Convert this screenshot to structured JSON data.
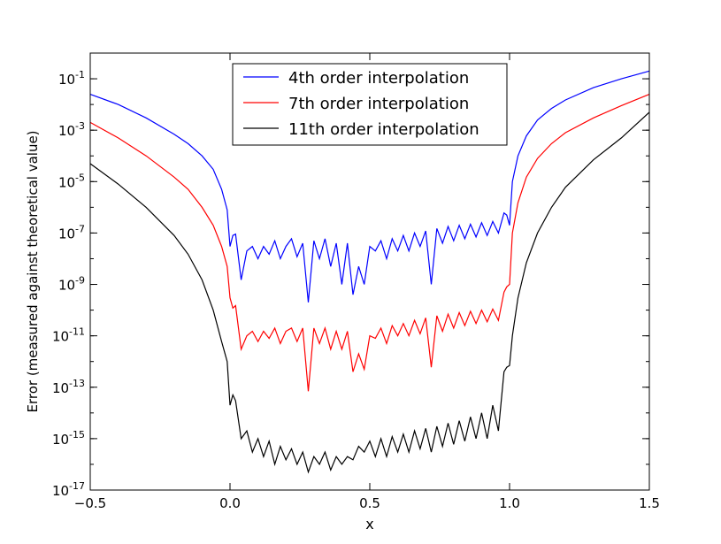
{
  "chart_data": {
    "type": "line",
    "xlabel": "x",
    "ylabel": "Error (measured against theoretical value)",
    "xlim": [
      -0.5,
      1.5
    ],
    "ylim": [
      1e-17,
      1
    ],
    "yscale": "log",
    "grid": false,
    "legend_position": "top-center",
    "x_ticks": [
      -0.5,
      0.0,
      0.5,
      1.0,
      1.5
    ],
    "x_tick_labels": [
      "−0.5",
      "0.0",
      "0.5",
      "1.0",
      "1.5"
    ],
    "y_ticks": [
      -17,
      -15,
      -13,
      -11,
      -9,
      -7,
      -5,
      -3,
      -1
    ],
    "series": [
      {
        "name": "4th order interpolation",
        "color": "#0000ff",
        "x": [
          -0.5,
          -0.4,
          -0.3,
          -0.2,
          -0.15,
          -0.1,
          -0.06,
          -0.03,
          -0.01,
          0.0,
          0.01,
          0.02,
          0.04,
          0.06,
          0.08,
          0.1,
          0.12,
          0.14,
          0.16,
          0.18,
          0.2,
          0.22,
          0.24,
          0.26,
          0.28,
          0.3,
          0.32,
          0.34,
          0.36,
          0.38,
          0.4,
          0.42,
          0.44,
          0.46,
          0.48,
          0.5,
          0.52,
          0.54,
          0.56,
          0.58,
          0.6,
          0.62,
          0.64,
          0.66,
          0.68,
          0.7,
          0.72,
          0.74,
          0.76,
          0.78,
          0.8,
          0.82,
          0.84,
          0.86,
          0.88,
          0.9,
          0.92,
          0.94,
          0.96,
          0.98,
          0.99,
          1.0,
          1.01,
          1.03,
          1.06,
          1.1,
          1.15,
          1.2,
          1.3,
          1.4,
          1.5
        ],
        "y": [
          0.025,
          0.01,
          0.003,
          0.0007,
          0.0003,
          0.0001,
          3e-05,
          5e-06,
          8e-07,
          3e-08,
          8e-08,
          9e-08,
          1.5e-09,
          2e-08,
          3e-08,
          1e-08,
          3e-08,
          1.5e-08,
          5e-08,
          1e-08,
          3e-08,
          6e-08,
          1.2e-08,
          4e-08,
          2e-10,
          5e-08,
          1e-08,
          6e-08,
          5e-09,
          4e-08,
          1e-09,
          4e-08,
          4e-10,
          5e-09,
          1e-09,
          3e-08,
          2e-08,
          5e-08,
          1e-08,
          6e-08,
          2e-08,
          8e-08,
          2e-08,
          1e-07,
          3e-08,
          1.2e-07,
          1e-09,
          1.5e-07,
          4e-08,
          1.8e-07,
          5e-08,
          2e-07,
          6e-08,
          2.2e-07,
          7e-08,
          2.5e-07,
          8e-08,
          2.8e-07,
          1e-07,
          6e-07,
          5e-07,
          2e-07,
          1e-05,
          0.0001,
          0.0006,
          0.0025,
          0.007,
          0.015,
          0.045,
          0.1,
          0.2
        ]
      },
      {
        "name": "7th order interpolation",
        "color": "#ff0000",
        "x": [
          -0.5,
          -0.4,
          -0.3,
          -0.2,
          -0.15,
          -0.1,
          -0.06,
          -0.03,
          -0.01,
          0.0,
          0.01,
          0.02,
          0.04,
          0.06,
          0.08,
          0.1,
          0.12,
          0.14,
          0.16,
          0.18,
          0.2,
          0.22,
          0.24,
          0.26,
          0.28,
          0.3,
          0.32,
          0.34,
          0.36,
          0.38,
          0.4,
          0.42,
          0.44,
          0.46,
          0.48,
          0.5,
          0.52,
          0.54,
          0.56,
          0.58,
          0.6,
          0.62,
          0.64,
          0.66,
          0.68,
          0.7,
          0.72,
          0.74,
          0.76,
          0.78,
          0.8,
          0.82,
          0.84,
          0.86,
          0.88,
          0.9,
          0.92,
          0.94,
          0.96,
          0.98,
          0.99,
          1.0,
          1.01,
          1.03,
          1.06,
          1.1,
          1.15,
          1.2,
          1.3,
          1.4,
          1.5
        ],
        "y": [
          0.002,
          0.0005,
          0.0001,
          1.5e-05,
          5e-06,
          1e-06,
          2e-07,
          3e-08,
          5e-09,
          3e-10,
          1.2e-10,
          1.5e-10,
          3e-12,
          1e-11,
          1.5e-11,
          6e-12,
          1.5e-11,
          8e-12,
          2e-11,
          5e-12,
          1.5e-11,
          2e-11,
          6e-12,
          2e-11,
          7e-14,
          2e-11,
          5e-12,
          2e-11,
          3e-12,
          1.5e-11,
          3e-12,
          1.5e-11,
          4e-13,
          2e-12,
          5e-13,
          1e-11,
          8e-12,
          2e-11,
          5e-12,
          2.5e-11,
          1e-11,
          3e-11,
          1e-11,
          4e-11,
          1.2e-11,
          5e-11,
          6e-13,
          6e-11,
          1.5e-11,
          7e-11,
          2e-11,
          8e-11,
          2.5e-11,
          9e-11,
          3e-11,
          1e-10,
          3.5e-11,
          1.1e-10,
          4e-11,
          5e-10,
          8e-10,
          1e-09,
          1e-07,
          1.5e-06,
          1.5e-05,
          8e-05,
          0.0003,
          0.0008,
          0.003,
          0.009,
          0.025
        ]
      },
      {
        "name": "11th order interpolation",
        "color": "#000000",
        "x": [
          -0.5,
          -0.4,
          -0.3,
          -0.2,
          -0.15,
          -0.1,
          -0.06,
          -0.03,
          -0.01,
          0.0,
          0.01,
          0.02,
          0.04,
          0.06,
          0.08,
          0.1,
          0.12,
          0.14,
          0.16,
          0.18,
          0.2,
          0.22,
          0.24,
          0.26,
          0.28,
          0.3,
          0.32,
          0.34,
          0.36,
          0.38,
          0.4,
          0.42,
          0.44,
          0.46,
          0.48,
          0.5,
          0.52,
          0.54,
          0.56,
          0.58,
          0.6,
          0.62,
          0.64,
          0.66,
          0.68,
          0.7,
          0.72,
          0.74,
          0.76,
          0.78,
          0.8,
          0.82,
          0.84,
          0.86,
          0.88,
          0.9,
          0.92,
          0.94,
          0.96,
          0.98,
          0.99,
          1.0,
          1.01,
          1.03,
          1.06,
          1.1,
          1.15,
          1.2,
          1.3,
          1.4,
          1.5
        ],
        "y": [
          5e-05,
          8e-06,
          1e-06,
          8e-08,
          1.5e-08,
          1.5e-09,
          1e-10,
          6e-12,
          1e-12,
          2e-14,
          5e-14,
          3e-14,
          1e-15,
          2e-15,
          3e-16,
          1e-15,
          2e-16,
          8e-16,
          1e-16,
          5e-16,
          1.5e-16,
          4e-16,
          1e-16,
          3e-16,
          5e-17,
          2e-16,
          1e-16,
          3e-16,
          6e-17,
          2e-16,
          1e-16,
          2e-16,
          1.5e-16,
          5e-16,
          3e-16,
          8e-16,
          2e-16,
          1e-15,
          2e-16,
          1.2e-15,
          3e-16,
          1.5e-15,
          3e-16,
          2e-15,
          4e-16,
          2.5e-15,
          3e-16,
          3e-15,
          5e-16,
          4e-15,
          6e-16,
          5e-15,
          8e-16,
          7e-15,
          1e-15,
          1e-14,
          1e-15,
          2e-14,
          2e-15,
          4e-13,
          6e-13,
          7e-13,
          1e-11,
          3e-10,
          7e-09,
          1e-07,
          1e-06,
          6e-06,
          7e-05,
          0.0005,
          0.005
        ]
      }
    ]
  }
}
